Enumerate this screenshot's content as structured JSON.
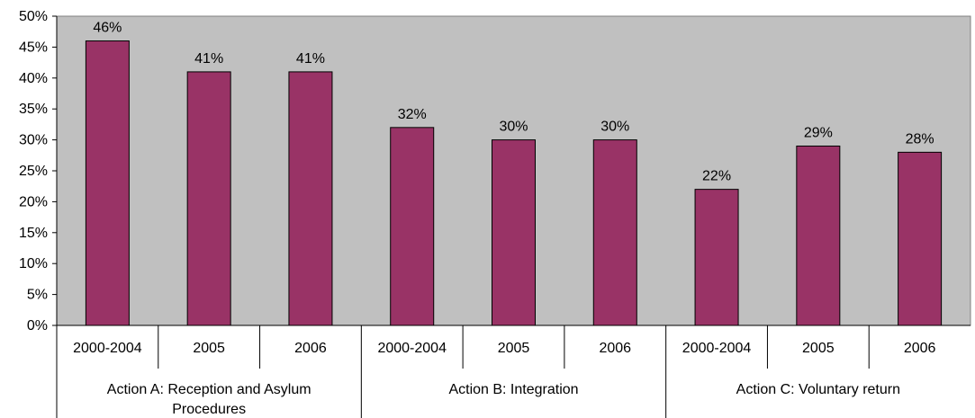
{
  "chart_data": {
    "type": "bar",
    "ylim": [
      0,
      50
    ],
    "y_ticks": [
      "0%",
      "5%",
      "10%",
      "15%",
      "20%",
      "25%",
      "30%",
      "35%",
      "40%",
      "45%",
      "50%"
    ],
    "y_tick_values": [
      0,
      5,
      10,
      15,
      20,
      25,
      30,
      35,
      40,
      45,
      50
    ],
    "categories": [
      "2000-2004",
      "2005",
      "2006",
      "2000-2004",
      "2005",
      "2006",
      "2000-2004",
      "2005",
      "2006"
    ],
    "values": [
      46,
      41,
      41,
      32,
      30,
      30,
      22,
      29,
      28
    ],
    "value_labels": [
      "46%",
      "41%",
      "41%",
      "32%",
      "30%",
      "30%",
      "22%",
      "29%",
      "28%"
    ],
    "groups": [
      {
        "label_lines": [
          "Action A: Reception and Asylum",
          "Procedures"
        ],
        "categories": 3
      },
      {
        "label_lines": [
          "Action B: Integration"
        ],
        "categories": 3
      },
      {
        "label_lines": [
          "Action C: Voluntary return"
        ],
        "categories": 3
      }
    ],
    "grid": false,
    "legend": "none",
    "colors": {
      "bar": "#993366",
      "plot_background": "#c0c0c0",
      "axis": "#000000"
    }
  }
}
